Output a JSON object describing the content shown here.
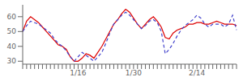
{
  "chart_data": {
    "type": "line",
    "categories": [
      null,
      null,
      null,
      null,
      null,
      null,
      null,
      null,
      null,
      null,
      null,
      null,
      null,
      null,
      "1/16",
      null,
      null,
      null,
      null,
      null,
      null,
      null,
      null,
      null,
      null,
      null,
      null,
      null,
      "1/30",
      null,
      null,
      null,
      null,
      null,
      null,
      null,
      null,
      null,
      null,
      null,
      null,
      null,
      null,
      null,
      "2/14",
      null,
      null,
      null,
      null,
      null,
      null,
      null,
      null,
      null,
      null
    ],
    "series": [
      {
        "color": "#dd0000",
        "line_style": "solid",
        "values": [
          50,
          57,
          60,
          58,
          56,
          53,
          50,
          47,
          44,
          41,
          40,
          38,
          33,
          30,
          30,
          32,
          35,
          34,
          32,
          36,
          40,
          45,
          50,
          55,
          58,
          62,
          65,
          63,
          59,
          55,
          52,
          55,
          58,
          60,
          57,
          53,
          46,
          45,
          49,
          51,
          52,
          53,
          55,
          55,
          56,
          56,
          55,
          55,
          56,
          57,
          56,
          55,
          55,
          55,
          54
        ]
      },
      {
        "color": "#4444cc",
        "line_style": "dashed",
        "values": [
          50,
          54,
          57,
          56,
          55,
          53,
          51,
          49,
          45,
          42,
          40,
          37,
          33,
          30,
          33,
          36,
          34,
          32,
          30,
          33,
          36,
          42,
          49,
          55,
          58,
          61,
          63,
          61,
          58,
          55,
          52,
          54,
          57,
          58,
          56,
          50,
          35,
          38,
          42,
          47,
          51,
          54,
          56,
          58,
          61,
          59,
          55,
          53,
          55,
          55,
          55,
          53,
          55,
          61,
          51
        ]
      }
    ],
    "ylim": [
      28,
      68
    ],
    "yticks": [
      30,
      40,
      50,
      60
    ],
    "grid": false
  }
}
